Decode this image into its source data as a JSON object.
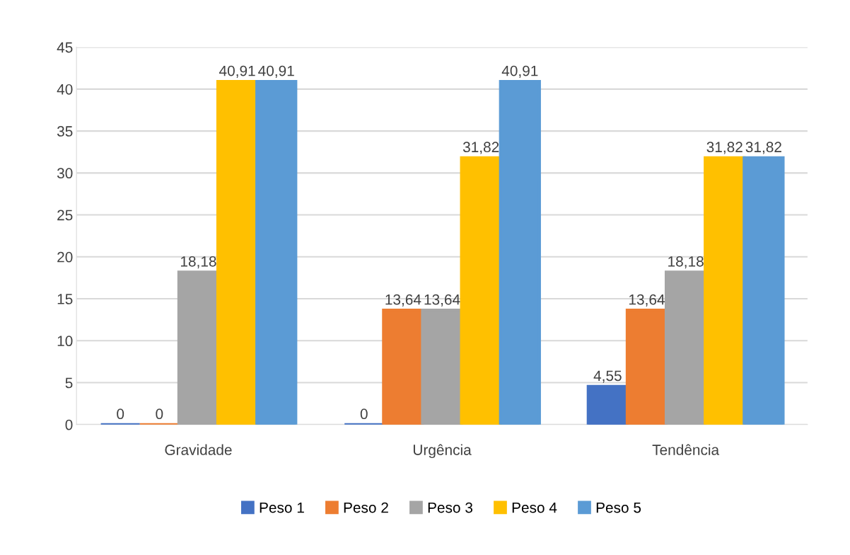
{
  "chart_data": {
    "type": "bar",
    "categories": [
      "Gravidade",
      "Urgência",
      "Tendência"
    ],
    "series": [
      {
        "name": "Peso 1",
        "color": "#4472c4",
        "values": [
          0,
          0,
          4.55
        ],
        "value_labels": [
          "0",
          "0",
          "4,55"
        ]
      },
      {
        "name": "Peso 2",
        "color": "#ed7d31",
        "values": [
          0,
          13.64,
          13.64
        ],
        "value_labels": [
          "0",
          "13,64",
          "13,64"
        ]
      },
      {
        "name": "Peso 3",
        "color": "#a5a5a5",
        "values": [
          18.18,
          13.64,
          18.18
        ],
        "value_labels": [
          "18,18",
          "13,64",
          "18,18"
        ]
      },
      {
        "name": "Peso 4",
        "color": "#ffc000",
        "values": [
          40.91,
          31.82,
          31.82
        ],
        "value_labels": [
          "40,91",
          "31,82",
          "31,82"
        ]
      },
      {
        "name": "Peso 5",
        "color": "#5b9bd5",
        "values": [
          40.91,
          40.91,
          31.82
        ],
        "value_labels": [
          "40,91",
          "40,91",
          "31,82"
        ]
      }
    ],
    "ylim": [
      0,
      45
    ],
    "yticks": [
      0,
      5,
      10,
      15,
      20,
      25,
      30,
      35,
      40,
      45
    ],
    "grid": "y",
    "legend": "bottom"
  }
}
